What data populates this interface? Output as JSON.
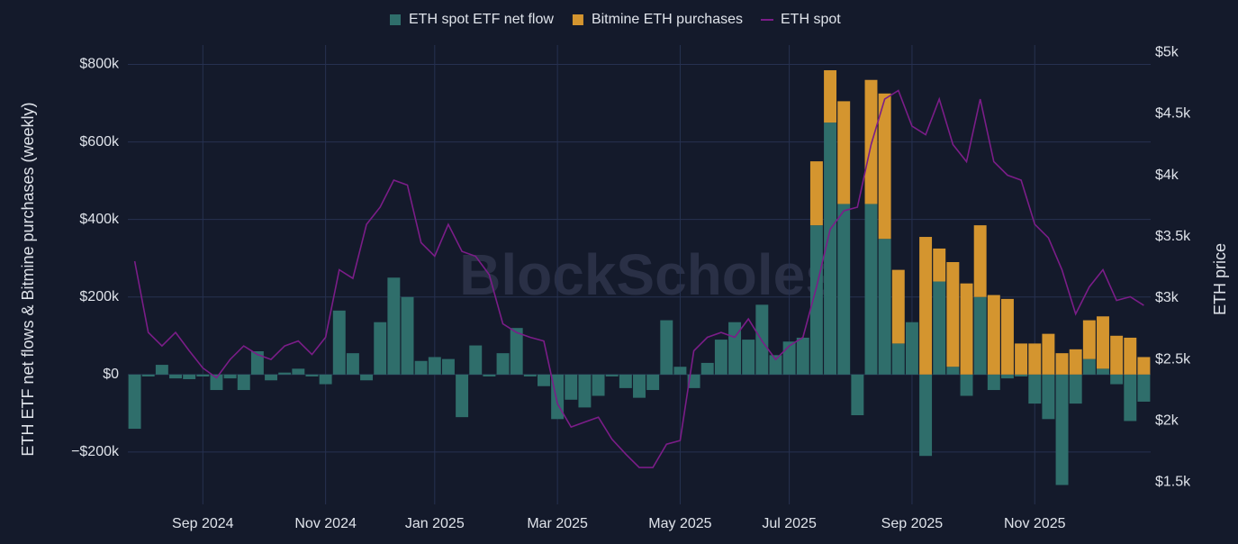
{
  "chart_data": {
    "type": "bar_line",
    "watermark": "BlockScholes",
    "y_label": "ETH ETF net flows & Bitmine purchases (weekly)",
    "y2_label": "ETH price",
    "categories": [
      null,
      null,
      null,
      null,
      null,
      "Sep 2024",
      null,
      null,
      null,
      null,
      null,
      null,
      null,
      null,
      "Nov 2024",
      null,
      null,
      null,
      null,
      null,
      null,
      null,
      "Jan 2025",
      null,
      null,
      null,
      null,
      null,
      null,
      null,
      null,
      "Mar 2025",
      null,
      null,
      null,
      null,
      null,
      null,
      null,
      null,
      "May 2025",
      null,
      null,
      null,
      null,
      null,
      null,
      null,
      "Jul 2025",
      null,
      null,
      null,
      null,
      null,
      null,
      null,
      null,
      "Sep 2025",
      null,
      null,
      null,
      null,
      null,
      null,
      null,
      null,
      "Nov 2025",
      null,
      null,
      null,
      null,
      null,
      null,
      null,
      null
    ],
    "series": [
      {
        "name": "ETH spot ETF net flow",
        "color": "#2f6e6b",
        "values": [
          -140000,
          -5000,
          25000,
          -10000,
          -12000,
          -5000,
          -40000,
          -10000,
          -40000,
          60000,
          -15000,
          5000,
          15000,
          -5000,
          -25000,
          165000,
          55000,
          -15000,
          135000,
          250000,
          200000,
          35000,
          45000,
          40000,
          -110000,
          75000,
          -5000,
          55000,
          120000,
          -5000,
          -30000,
          -115000,
          -65000,
          -85000,
          -55000,
          -5000,
          -35000,
          -60000,
          -40000,
          140000,
          20000,
          -35000,
          30000,
          90000,
          135000,
          90000,
          180000,
          50000,
          85000,
          95000,
          385000,
          650000,
          440000,
          -105000,
          440000,
          350000,
          80000,
          135000,
          -210000,
          240000,
          20000,
          -55000,
          200000,
          -40000,
          -10000,
          -5000,
          -75000,
          -115000,
          -285000,
          -75000,
          40000,
          15000,
          -25000,
          -120000,
          -70000
        ]
      },
      {
        "name": "Bitmine ETH purchases",
        "color": "#d4952f",
        "values": [
          0,
          0,
          0,
          0,
          0,
          0,
          0,
          0,
          0,
          0,
          0,
          0,
          0,
          0,
          0,
          0,
          0,
          0,
          0,
          0,
          0,
          0,
          0,
          0,
          0,
          0,
          0,
          0,
          0,
          0,
          0,
          0,
          0,
          0,
          0,
          0,
          0,
          0,
          0,
          0,
          0,
          0,
          0,
          0,
          0,
          0,
          0,
          0,
          0,
          0,
          165000,
          135000,
          265000,
          0,
          320000,
          375000,
          190000,
          0,
          355000,
          85000,
          270000,
          235000,
          185000,
          205000,
          195000,
          80000,
          80000,
          105000,
          55000,
          65000,
          100000,
          135000,
          100000,
          95000,
          45000
        ]
      },
      {
        "name": "ETH spot",
        "color": "#7b1d88",
        "axis": "y2",
        "type": "line",
        "values": [
          3300,
          2720,
          2610,
          2720,
          2570,
          2430,
          2350,
          2500,
          2610,
          2540,
          2500,
          2610,
          2650,
          2540,
          2680,
          3230,
          3160,
          3600,
          3740,
          3960,
          3920,
          3450,
          3340,
          3600,
          3380,
          3340,
          3190,
          2790,
          2720,
          2680,
          2650,
          2140,
          1950,
          1990,
          2030,
          1850,
          1730,
          1620,
          1620,
          1810,
          1840,
          2570,
          2680,
          2720,
          2680,
          2830,
          2650,
          2500,
          2610,
          2680,
          3090,
          3560,
          3710,
          3740,
          4250,
          4620,
          4690,
          4400,
          4330,
          4620,
          4250,
          4110,
          4620,
          4110,
          4000,
          3960,
          3600,
          3490,
          3230,
          2870,
          3090,
          3230,
          2980,
          3010,
          2940
        ]
      }
    ],
    "ylim": [
      -335000,
      850000
    ],
    "yticks": [
      {
        "value": -200000,
        "label": "−$200k"
      },
      {
        "value": 0,
        "label": "$0"
      },
      {
        "value": 200000,
        "label": "$200k"
      },
      {
        "value": 400000,
        "label": "$400k"
      },
      {
        "value": 600000,
        "label": "$600k"
      },
      {
        "value": 800000,
        "label": "$800k"
      }
    ],
    "y2lim": [
      1320,
      5060
    ],
    "y2ticks": [
      {
        "value": 1500,
        "label": "$1.5k"
      },
      {
        "value": 2000,
        "label": "$2k"
      },
      {
        "value": 2500,
        "label": "$2.5k"
      },
      {
        "value": 3000,
        "label": "$3k"
      },
      {
        "value": 3500,
        "label": "$3.5k"
      },
      {
        "value": 4000,
        "label": "$4k"
      },
      {
        "value": 4500,
        "label": "$4.5k"
      },
      {
        "value": 5000,
        "label": "$5k"
      }
    ],
    "grid": true
  }
}
